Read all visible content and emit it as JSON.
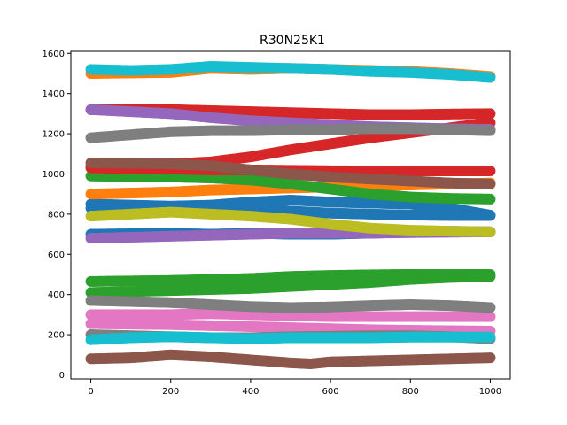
{
  "chart_data": {
    "type": "scatter",
    "title": "R30N25K1",
    "xlabel": "",
    "ylabel": "",
    "xlim": [
      -50,
      1050
    ],
    "ylim": [
      -20,
      1610
    ],
    "xticks": [
      0,
      200,
      400,
      600,
      800,
      1000
    ],
    "yticks": [
      0,
      200,
      400,
      600,
      800,
      1000,
      1200,
      1400,
      1600
    ],
    "grid": false,
    "legend": "none",
    "series": [
      {
        "color": "#1f77b4",
        "points": [
          [
            0,
            850
          ],
          [
            200,
            840
          ],
          [
            300,
            845
          ],
          [
            400,
            860
          ],
          [
            500,
            870
          ],
          [
            600,
            860
          ],
          [
            700,
            855
          ],
          [
            800,
            850
          ],
          [
            900,
            830
          ],
          [
            1000,
            795
          ]
        ]
      },
      {
        "color": "#1f77b4",
        "points": [
          [
            0,
            700
          ],
          [
            200,
            705
          ],
          [
            300,
            700
          ],
          [
            400,
            705
          ],
          [
            500,
            700
          ],
          [
            600,
            700
          ],
          [
            700,
            705
          ],
          [
            800,
            710
          ],
          [
            900,
            715
          ],
          [
            1000,
            712
          ]
        ]
      },
      {
        "color": "#1f77b4",
        "points": [
          [
            0,
            830
          ],
          [
            200,
            830
          ],
          [
            300,
            835
          ],
          [
            400,
            830
          ],
          [
            500,
            815
          ],
          [
            600,
            805
          ],
          [
            700,
            800
          ],
          [
            800,
            795
          ],
          [
            900,
            793
          ],
          [
            1000,
            793
          ]
        ]
      },
      {
        "color": "#ff7f0e",
        "points": [
          [
            0,
            1500
          ],
          [
            200,
            1505
          ],
          [
            300,
            1525
          ],
          [
            400,
            1520
          ],
          [
            500,
            1525
          ],
          [
            600,
            1520
          ],
          [
            700,
            1515
          ],
          [
            800,
            1510
          ],
          [
            900,
            1500
          ],
          [
            1000,
            1485
          ]
        ]
      },
      {
        "color": "#ff7f0e",
        "points": [
          [
            0,
            900
          ],
          [
            200,
            910
          ],
          [
            300,
            920
          ],
          [
            400,
            925
          ],
          [
            500,
            930
          ],
          [
            600,
            935
          ],
          [
            700,
            940
          ],
          [
            800,
            945
          ],
          [
            900,
            950
          ],
          [
            1000,
            955
          ]
        ]
      },
      {
        "color": "#2ca02c",
        "points": [
          [
            0,
            990
          ],
          [
            200,
            985
          ],
          [
            300,
            980
          ],
          [
            400,
            970
          ],
          [
            500,
            950
          ],
          [
            600,
            925
          ],
          [
            700,
            900
          ],
          [
            800,
            885
          ],
          [
            900,
            878
          ],
          [
            1000,
            875
          ]
        ]
      },
      {
        "color": "#2ca02c",
        "points": [
          [
            0,
            465
          ],
          [
            200,
            470
          ],
          [
            300,
            475
          ],
          [
            400,
            480
          ],
          [
            500,
            490
          ],
          [
            600,
            495
          ],
          [
            700,
            498
          ],
          [
            800,
            500
          ],
          [
            900,
            500
          ],
          [
            1000,
            500
          ]
        ]
      },
      {
        "color": "#2ca02c",
        "points": [
          [
            0,
            410
          ],
          [
            200,
            420
          ],
          [
            300,
            425
          ],
          [
            400,
            430
          ],
          [
            500,
            440
          ],
          [
            600,
            450
          ],
          [
            700,
            460
          ],
          [
            800,
            475
          ],
          [
            900,
            485
          ],
          [
            1000,
            490
          ]
        ]
      },
      {
        "color": "#d62728",
        "points": [
          [
            0,
            1320
          ],
          [
            200,
            1320
          ],
          [
            300,
            1315
          ],
          [
            400,
            1310
          ],
          [
            500,
            1305
          ],
          [
            600,
            1300
          ],
          [
            700,
            1295
          ],
          [
            800,
            1295
          ],
          [
            900,
            1298
          ],
          [
            1000,
            1300
          ]
        ]
      },
      {
        "color": "#d62728",
        "points": [
          [
            0,
            1040
          ],
          [
            200,
            1050
          ],
          [
            300,
            1060
          ],
          [
            400,
            1085
          ],
          [
            500,
            1120
          ],
          [
            600,
            1150
          ],
          [
            700,
            1180
          ],
          [
            800,
            1205
          ],
          [
            900,
            1230
          ],
          [
            1000,
            1255
          ]
        ]
      },
      {
        "color": "#d62728",
        "points": [
          [
            0,
            1030
          ],
          [
            200,
            1025
          ],
          [
            300,
            1020
          ],
          [
            400,
            1020
          ],
          [
            500,
            1018
          ],
          [
            600,
            1016
          ],
          [
            700,
            1015
          ],
          [
            800,
            1015
          ],
          [
            900,
            1015
          ],
          [
            1000,
            1015
          ]
        ]
      },
      {
        "color": "#9467bd",
        "points": [
          [
            0,
            1320
          ],
          [
            200,
            1300
          ],
          [
            300,
            1280
          ],
          [
            400,
            1265
          ],
          [
            500,
            1255
          ],
          [
            600,
            1245
          ],
          [
            700,
            1235
          ],
          [
            800,
            1230
          ],
          [
            900,
            1225
          ],
          [
            1000,
            1222
          ]
        ]
      },
      {
        "color": "#9467bd",
        "points": [
          [
            0,
            680
          ],
          [
            200,
            690
          ],
          [
            300,
            695
          ],
          [
            400,
            700
          ],
          [
            500,
            705
          ],
          [
            600,
            705
          ],
          [
            700,
            705
          ],
          [
            800,
            708
          ],
          [
            900,
            710
          ],
          [
            1000,
            712
          ]
        ]
      },
      {
        "color": "#8c564b",
        "points": [
          [
            0,
            80
          ],
          [
            100,
            85
          ],
          [
            200,
            100
          ],
          [
            300,
            90
          ],
          [
            400,
            75
          ],
          [
            500,
            60
          ],
          [
            550,
            55
          ],
          [
            600,
            65
          ],
          [
            700,
            70
          ],
          [
            800,
            75
          ],
          [
            900,
            80
          ],
          [
            1000,
            85
          ]
        ]
      },
      {
        "color": "#8c564b",
        "points": [
          [
            0,
            1055
          ],
          [
            200,
            1050
          ],
          [
            300,
            1040
          ],
          [
            400,
            1020
          ],
          [
            500,
            1000
          ],
          [
            600,
            985
          ],
          [
            700,
            975
          ],
          [
            800,
            965
          ],
          [
            900,
            955
          ],
          [
            1000,
            950
          ]
        ]
      },
      {
        "color": "#e377c2",
        "points": [
          [
            0,
            300
          ],
          [
            200,
            300
          ],
          [
            300,
            305
          ],
          [
            400,
            300
          ],
          [
            500,
            295
          ],
          [
            600,
            290
          ],
          [
            700,
            290
          ],
          [
            800,
            290
          ],
          [
            900,
            290
          ],
          [
            1000,
            290
          ]
        ]
      },
      {
        "color": "#e377c2",
        "points": [
          [
            0,
            255
          ],
          [
            200,
            250
          ],
          [
            300,
            245
          ],
          [
            400,
            240
          ],
          [
            500,
            235
          ],
          [
            600,
            230
          ],
          [
            700,
            225
          ],
          [
            800,
            222
          ],
          [
            900,
            220
          ],
          [
            1000,
            218
          ]
        ]
      },
      {
        "color": "#7f7f7f",
        "points": [
          [
            0,
            1180
          ],
          [
            100,
            1195
          ],
          [
            200,
            1210
          ],
          [
            300,
            1215
          ],
          [
            400,
            1215
          ],
          [
            500,
            1220
          ],
          [
            600,
            1220
          ],
          [
            700,
            1225
          ],
          [
            800,
            1225
          ],
          [
            900,
            1220
          ],
          [
            1000,
            1215
          ]
        ]
      },
      {
        "color": "#7f7f7f",
        "points": [
          [
            0,
            370
          ],
          [
            200,
            360
          ],
          [
            300,
            350
          ],
          [
            400,
            340
          ],
          [
            500,
            335
          ],
          [
            600,
            338
          ],
          [
            700,
            345
          ],
          [
            800,
            350
          ],
          [
            900,
            345
          ],
          [
            1000,
            335
          ]
        ]
      },
      {
        "color": "#7f7f7f",
        "points": [
          [
            0,
            200
          ],
          [
            200,
            190
          ],
          [
            300,
            185
          ],
          [
            400,
            185
          ],
          [
            500,
            190
          ],
          [
            600,
            192
          ],
          [
            700,
            195
          ],
          [
            800,
            195
          ],
          [
            900,
            190
          ],
          [
            1000,
            180
          ]
        ]
      },
      {
        "color": "#bcbd22",
        "points": [
          [
            0,
            790
          ],
          [
            100,
            800
          ],
          [
            200,
            810
          ],
          [
            300,
            800
          ],
          [
            400,
            790
          ],
          [
            500,
            775
          ],
          [
            600,
            750
          ],
          [
            700,
            730
          ],
          [
            800,
            720
          ],
          [
            900,
            715
          ],
          [
            1000,
            712
          ]
        ]
      },
      {
        "color": "#17becf",
        "points": [
          [
            0,
            1520
          ],
          [
            100,
            1515
          ],
          [
            200,
            1520
          ],
          [
            300,
            1535
          ],
          [
            400,
            1530
          ],
          [
            500,
            1525
          ],
          [
            600,
            1520
          ],
          [
            700,
            1510
          ],
          [
            800,
            1505
          ],
          [
            900,
            1495
          ],
          [
            1000,
            1480
          ]
        ]
      },
      {
        "color": "#17becf",
        "points": [
          [
            0,
            175
          ],
          [
            100,
            185
          ],
          [
            200,
            190
          ],
          [
            300,
            185
          ],
          [
            400,
            180
          ],
          [
            500,
            185
          ],
          [
            600,
            185
          ],
          [
            700,
            185
          ],
          [
            800,
            188
          ],
          [
            900,
            188
          ],
          [
            1000,
            188
          ]
        ]
      }
    ]
  }
}
